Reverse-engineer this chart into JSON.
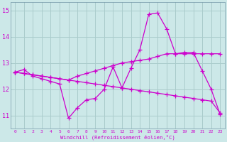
{
  "xlabel": "Windchill (Refroidissement éolien,°C)",
  "bg_color": "#cce8e8",
  "grid_color": "#aacccc",
  "line_color": "#cc00cc",
  "xlim": [
    -0.5,
    23.5
  ],
  "ylim": [
    10.5,
    15.3
  ],
  "xticks": [
    0,
    1,
    2,
    3,
    4,
    5,
    6,
    7,
    8,
    9,
    10,
    11,
    12,
    13,
    14,
    15,
    16,
    17,
    18,
    19,
    20,
    21,
    22,
    23
  ],
  "yticks": [
    11,
    12,
    13,
    14,
    15
  ],
  "line1_x": [
    0,
    1,
    2,
    3,
    4,
    5,
    6,
    7,
    8,
    9,
    10,
    11,
    12,
    13,
    14,
    15,
    16,
    17,
    18,
    19,
    20,
    21,
    22,
    23
  ],
  "line1_y": [
    12.65,
    12.75,
    12.5,
    12.4,
    12.3,
    12.2,
    10.9,
    11.3,
    11.6,
    11.65,
    12.0,
    12.85,
    12.05,
    12.8,
    13.5,
    14.85,
    14.9,
    14.3,
    13.35,
    13.4,
    13.4,
    12.7,
    12.0,
    11.05
  ],
  "line2_x": [
    0,
    1,
    2,
    3,
    4,
    5,
    6,
    7,
    8,
    9,
    10,
    11,
    12,
    13,
    14,
    15,
    16,
    17,
    18,
    19,
    20,
    21,
    22,
    23
  ],
  "line2_y": [
    12.65,
    12.6,
    12.55,
    12.5,
    12.45,
    12.4,
    12.35,
    12.3,
    12.25,
    12.2,
    12.15,
    12.1,
    12.05,
    12.0,
    11.95,
    11.9,
    11.85,
    11.8,
    11.75,
    11.7,
    11.65,
    11.6,
    11.55,
    11.1
  ],
  "line3_x": [
    0,
    1,
    2,
    3,
    4,
    5,
    6,
    7,
    8,
    9,
    10,
    11,
    12,
    13,
    14,
    15,
    16,
    17,
    18,
    19,
    20,
    21,
    22,
    23
  ],
  "line3_y": [
    12.65,
    12.6,
    12.55,
    12.5,
    12.45,
    12.4,
    12.35,
    12.5,
    12.6,
    12.7,
    12.8,
    12.9,
    13.0,
    13.05,
    13.1,
    13.15,
    13.25,
    13.35,
    13.35,
    13.35,
    13.35,
    13.35,
    13.35,
    13.35
  ]
}
